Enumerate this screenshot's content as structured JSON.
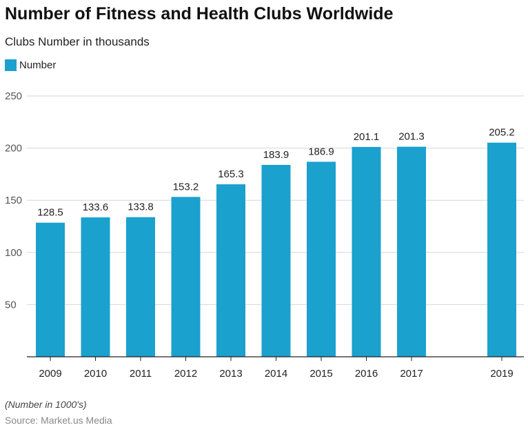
{
  "title": "Number of Fitness and Health Clubs Worldwide",
  "subtitle": "Clubs Number in thousands",
  "note": "(Number in 1000's)",
  "source": "Source: Market.us Media",
  "colors": {
    "bar": "#1aa1ce",
    "grid": "#d6d6d6",
    "axis": "#222222"
  },
  "chart_data": {
    "type": "bar",
    "title": "Number of Fitness and Health Clubs Worldwide",
    "subtitle": "Clubs Number in thousands",
    "legend": {
      "placement": "top-left",
      "entries": [
        "Number"
      ]
    },
    "x": [
      2009,
      2010,
      2011,
      2012,
      2013,
      2014,
      2015,
      2016,
      2017,
      2019
    ],
    "x_labels": [
      "2009",
      "2010",
      "2011",
      "2012",
      "2013",
      "2014",
      "2015",
      "2016",
      "2017",
      "2019"
    ],
    "series": [
      {
        "name": "Number",
        "values": [
          128.5,
          133.6,
          133.8,
          153.2,
          165.3,
          183.9,
          186.9,
          201.1,
          201.3,
          205.2
        ]
      }
    ],
    "value_labels": [
      "128.5",
      "133.6",
      "133.8",
      "153.2",
      "165.3",
      "183.9",
      "186.9",
      "201.1",
      "201.3",
      "205.2"
    ],
    "ylim": [
      0,
      250
    ],
    "y_ticks": [
      50,
      100,
      150,
      200,
      250
    ],
    "xlim": [
      2009,
      2019
    ],
    "grid": true
  }
}
